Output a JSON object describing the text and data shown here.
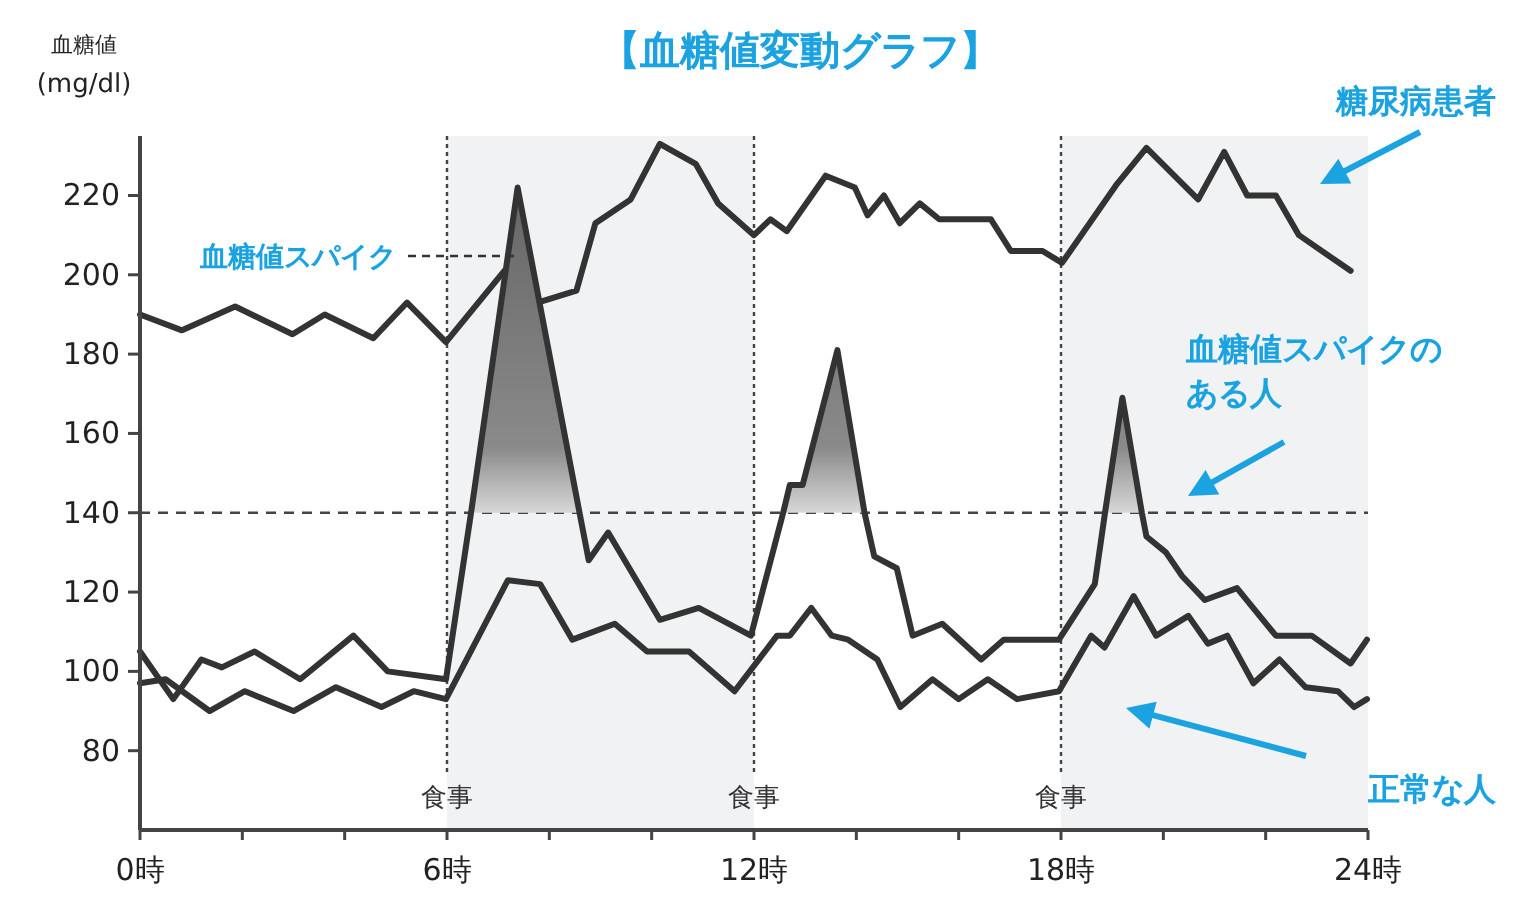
{
  "chart_data": {
    "type": "line",
    "title": "【血糖値変動グラフ】",
    "ylabel": "血糖値\n(mg/dl)",
    "x": [
      0,
      0.82,
      1.86,
      2.98,
      3.61,
      4.56,
      5.22,
      5.98,
      7.12,
      7.77,
      8.53,
      8.9,
      9.59,
      10.16,
      10.86,
      11.3,
      12,
      12.32,
      12.64,
      13.4,
      13.97,
      14.22,
      14.54,
      14.85,
      15.24,
      15.62,
      16.63,
      17.02,
      17.64,
      18.02,
      19.1,
      19.67,
      20.68,
      21.19,
      21.64,
      22.2,
      22.65,
      23.66
    ],
    "series": [
      {
        "name": "糖尿病患者",
        "color": "#333333",
        "values": [
          190,
          186,
          192,
          185,
          190,
          184,
          193,
          183,
          201,
          193,
          196,
          213,
          219,
          233,
          228,
          218,
          210,
          214,
          211,
          225,
          222,
          215,
          220,
          213,
          218,
          214,
          214,
          206,
          206,
          203,
          223,
          232,
          219,
          231,
          220,
          220,
          210,
          201
        ]
      },
      {
        "name": "血糖値スパイクのある人",
        "color": "#333333",
        "x": [
          0,
          0.65,
          1.2,
          1.6,
          2.24,
          3.13,
          4.17,
          4.84,
          5.98,
          6.47,
          7.38,
          8.59,
          8.77,
          9.15,
          10.16,
          10.92,
          11.94,
          12.57,
          12.7,
          12.95,
          13.63,
          14.16,
          14.35,
          14.79,
          15.1,
          15.68,
          16.44,
          16.88,
          17.96,
          18.66,
          18.86,
          19.2,
          19.58,
          19.67,
          20.05,
          20.37,
          20.81,
          21.44,
          22.2,
          22.9,
          23.66,
          23.98
        ],
        "values": [
          105,
          93,
          103,
          101,
          105,
          98,
          109,
          100,
          98,
          140,
          222,
          140,
          128,
          135,
          113,
          116,
          109,
          140,
          147,
          147,
          181,
          140,
          129,
          126,
          109,
          112,
          103,
          108,
          108,
          122,
          140,
          169,
          140,
          134,
          130,
          124,
          118,
          121,
          109,
          109,
          102,
          108
        ],
        "lower": [
          null,
          null,
          null,
          null,
          null,
          null,
          null,
          null,
          null,
          140,
          140,
          140,
          null,
          null,
          null,
          null,
          null,
          140,
          140,
          140,
          140,
          140,
          null,
          null,
          null,
          null,
          null,
          null,
          null,
          null,
          140,
          140,
          140,
          null,
          null,
          null,
          null,
          null,
          null,
          null,
          null,
          null
        ],
        "upper": [
          null,
          null,
          null,
          null,
          null,
          null,
          null,
          null,
          null,
          140,
          222,
          140,
          null,
          null,
          null,
          null,
          null,
          140,
          147,
          147,
          181,
          140,
          null,
          null,
          null,
          null,
          null,
          null,
          null,
          null,
          140,
          169,
          140,
          null,
          null,
          null,
          null,
          null,
          null,
          null,
          null,
          null
        ]
      },
      {
        "name": "正常な人",
        "color": "#333333",
        "x": [
          0,
          0.5,
          1.36,
          2.05,
          3,
          3.83,
          4.72,
          5.35,
          5.98,
          7.19,
          7.82,
          8.45,
          9.28,
          9.91,
          10.73,
          11.62,
          12.45,
          12.7,
          13.12,
          13.52,
          13.84,
          14.41,
          14.86,
          15.49,
          16,
          16.57,
          17.14,
          17.96,
          18.59,
          18.85,
          19.42,
          19.86,
          20.49,
          20.87,
          21.25,
          21.76,
          22.27,
          22.78,
          23.41,
          23.73,
          23.98
        ],
        "values": [
          97,
          98,
          90,
          95,
          90,
          96,
          91,
          95,
          93,
          123,
          122,
          108,
          112,
          105,
          105,
          95,
          109,
          109,
          116,
          109,
          108,
          103,
          91,
          98,
          93,
          98,
          93,
          95,
          109,
          106,
          119,
          109,
          114,
          107,
          109,
          97,
          103,
          96,
          95,
          91,
          93
        ]
      }
    ],
    "xlim": [
      0,
      24
    ],
    "xticks": [
      {
        "value": 0,
        "label": "0時"
      },
      {
        "value": 2,
        "label": null
      },
      {
        "value": 4,
        "label": null
      },
      {
        "value": 6,
        "label": "6時"
      },
      {
        "value": 8,
        "label": null
      },
      {
        "value": 10,
        "label": null
      },
      {
        "value": 12,
        "label": "12時"
      },
      {
        "value": 14,
        "label": null
      },
      {
        "value": 16,
        "label": null
      },
      {
        "value": 18,
        "label": "18時"
      },
      {
        "value": 20,
        "label": null
      },
      {
        "value": 22,
        "label": null
      },
      {
        "value": 24,
        "label": "24時"
      }
    ],
    "ylim": [
      60,
      235
    ],
    "yticks": [
      80,
      100,
      120,
      140,
      160,
      180,
      200,
      220
    ],
    "bands": [
      {
        "axis": "x",
        "from": 6,
        "to": 12,
        "color": "#f1f2f3"
      },
      {
        "axis": "x",
        "from": 18,
        "to": 24,
        "color": "#f1f2f3"
      }
    ],
    "ref_lines": [
      {
        "axis": "y",
        "value": 140,
        "line_style": "dashed"
      },
      {
        "axis": "x",
        "value": 6,
        "label": "食事",
        "line_style": "dotted"
      },
      {
        "axis": "x",
        "value": 12,
        "label": "食事",
        "line_style": "dotted"
      },
      {
        "axis": "x",
        "value": 18,
        "label": "食事",
        "line_style": "dotted"
      }
    ],
    "annotations": [
      "血糖値スパイク"
    ],
    "grid": false,
    "marker": "none",
    "line_style": "solid"
  }
}
